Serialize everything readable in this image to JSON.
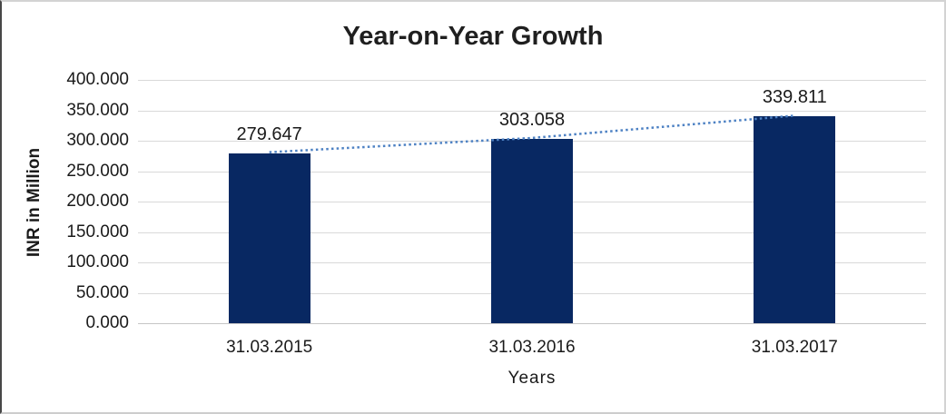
{
  "chart_data": {
    "type": "bar",
    "title": "Year-on-Year Growth",
    "xlabel": "Years",
    "ylabel": "INR in Million",
    "categories": [
      "31.03.2015",
      "31.03.2016",
      "31.03.2017"
    ],
    "values": [
      279.647,
      303.058,
      339.811
    ],
    "data_labels": [
      "279.647",
      "303.058",
      "339.811"
    ],
    "ylim": [
      0,
      400
    ],
    "ytick_values": [
      0,
      50,
      100,
      150,
      200,
      250,
      300,
      350,
      400
    ],
    "ytick_labels": [
      "0.000",
      "50.000",
      "100.000",
      "150.000",
      "200.000",
      "250.000",
      "300.000",
      "350.000",
      "400.000"
    ],
    "grid": "horizontal",
    "legend": "none",
    "bar_color": "#082862",
    "trendline": {
      "style": "dotted",
      "color": "#4e82c4"
    }
  }
}
